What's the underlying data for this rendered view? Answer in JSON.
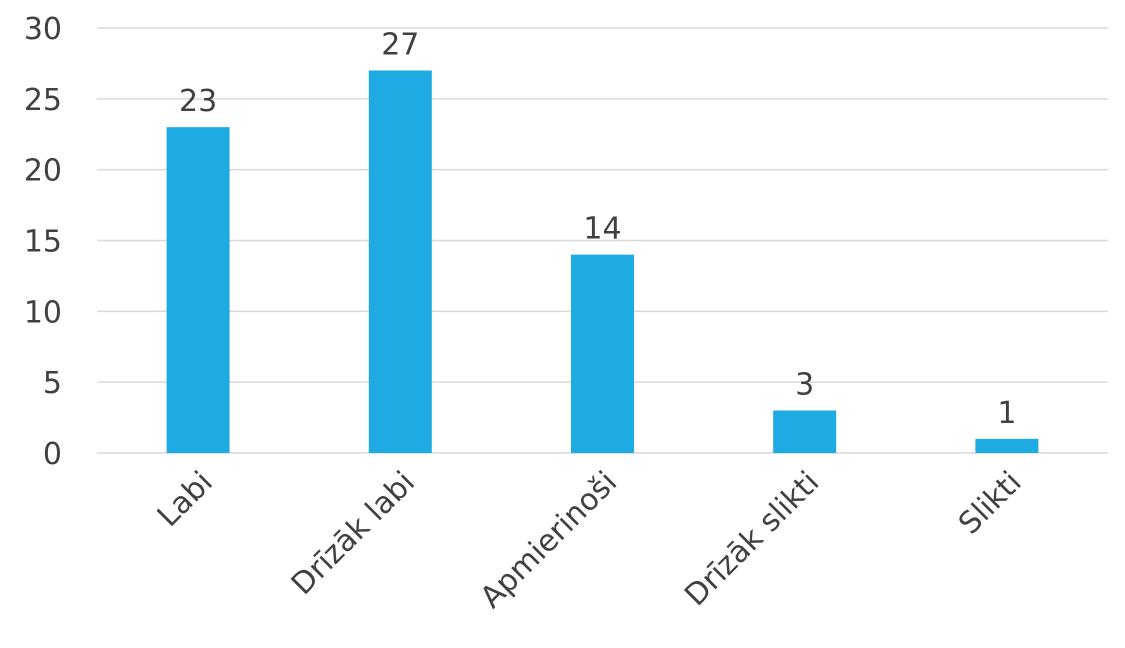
{
  "chart_data": {
    "type": "bar",
    "categories": [
      "Labi",
      "Drīzāk labi",
      "Apmierinoši",
      "Drīzāk slikti",
      "Slikti"
    ],
    "values": [
      23,
      27,
      14,
      3,
      1
    ],
    "ylim": [
      0,
      30
    ],
    "yticks": [
      0,
      5,
      10,
      15,
      20,
      25,
      30
    ],
    "grid": true,
    "data_labels": true,
    "bar_color": "#1eaae2",
    "text_color": "#404040",
    "grid_color": "#d9d9d9"
  }
}
